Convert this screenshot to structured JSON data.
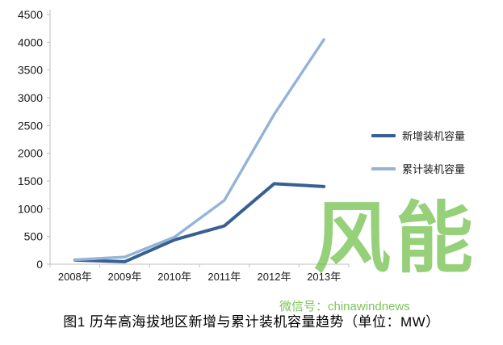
{
  "chart_data": {
    "type": "line",
    "categories": [
      "2008年",
      "2009年",
      "2010年",
      "2011年",
      "2012年",
      "2013年"
    ],
    "series": [
      {
        "name": "新增装机容量",
        "color": "#376092",
        "values": [
          75,
          45,
          440,
          690,
          1450,
          1400
        ]
      },
      {
        "name": "累计装机容量",
        "color": "#95B3D7",
        "values": [
          80,
          130,
          490,
          1150,
          2700,
          4050
        ]
      }
    ],
    "ylim": [
      0,
      4500
    ],
    "ytick_step": 500,
    "grid": false,
    "legend_position": "right",
    "xlabel": "",
    "ylabel": ""
  },
  "caption": "图1 历年高海拔地区新增与累计装机容量趋势（单位：MW）",
  "watermark": {
    "logo": "风能",
    "text": "微信号：chinawindnews"
  },
  "colors": {
    "axis": "#BFBFBF",
    "tick_label": "#1a1a1a"
  }
}
